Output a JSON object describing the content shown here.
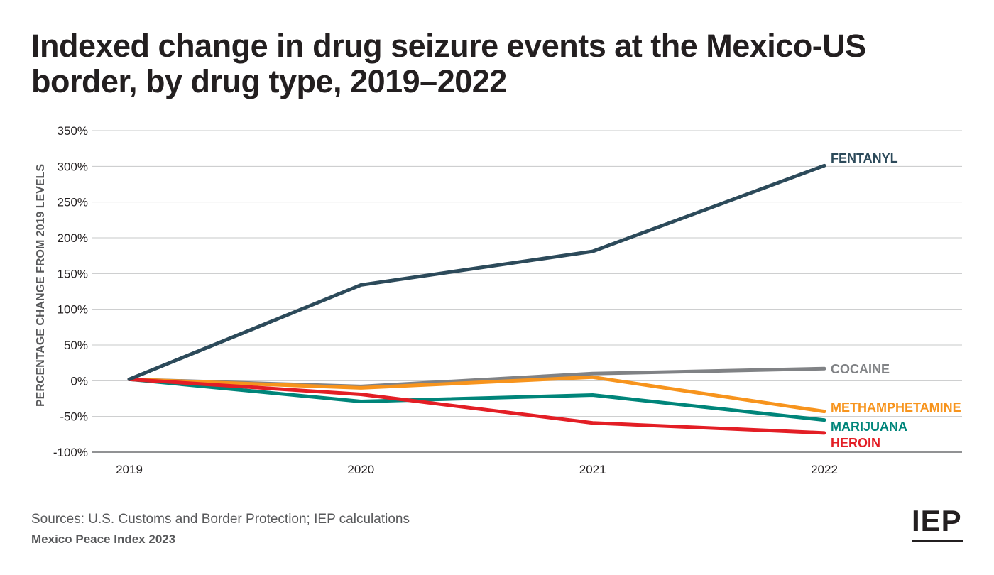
{
  "title": "Indexed change in drug seizure events at the Mexico-US border, by drug type, 2019–2022",
  "source": "Sources: U.S. Customs and Border Protection; IEP calculations",
  "publication": "Mexico Peace Index 2023",
  "logo_text": "IEP",
  "chart_data": {
    "type": "line",
    "title": "Indexed change in drug seizure events at the Mexico-US border, by drug type, 2019–2022",
    "xlabel": "",
    "ylabel": "PERCENTAGE CHANGE FROM 2019 LEVELS",
    "x": [
      "2019",
      "2020",
      "2021",
      "2022"
    ],
    "ylim": [
      -100,
      350
    ],
    "yticks": [
      350,
      300,
      250,
      200,
      150,
      100,
      50,
      0,
      -50,
      -100
    ],
    "ytick_labels": [
      "350%",
      "300%",
      "250%",
      "200%",
      "150%",
      "100%",
      "50%",
      "0%",
      "-50%",
      "-100%"
    ],
    "grid": "horizontal",
    "legend": "inline labels at line ends",
    "series": [
      {
        "name": "COCAINE",
        "color": "#808285",
        "values": [
          2,
          -8,
          10,
          17
        ]
      },
      {
        "name": "METHAMPHETAMINE",
        "color": "#f7941d",
        "values": [
          2,
          -10,
          5,
          -43
        ]
      },
      {
        "name": "MARIJUANA",
        "color": "#00857a",
        "values": [
          2,
          -29,
          -20,
          -55
        ]
      },
      {
        "name": "HEROIN",
        "color": "#e31e25",
        "values": [
          2,
          -19,
          -59,
          -73
        ]
      },
      {
        "name": "FENTANYL",
        "color": "#2c4a5a",
        "values": [
          2,
          134,
          181,
          301
        ]
      }
    ]
  }
}
